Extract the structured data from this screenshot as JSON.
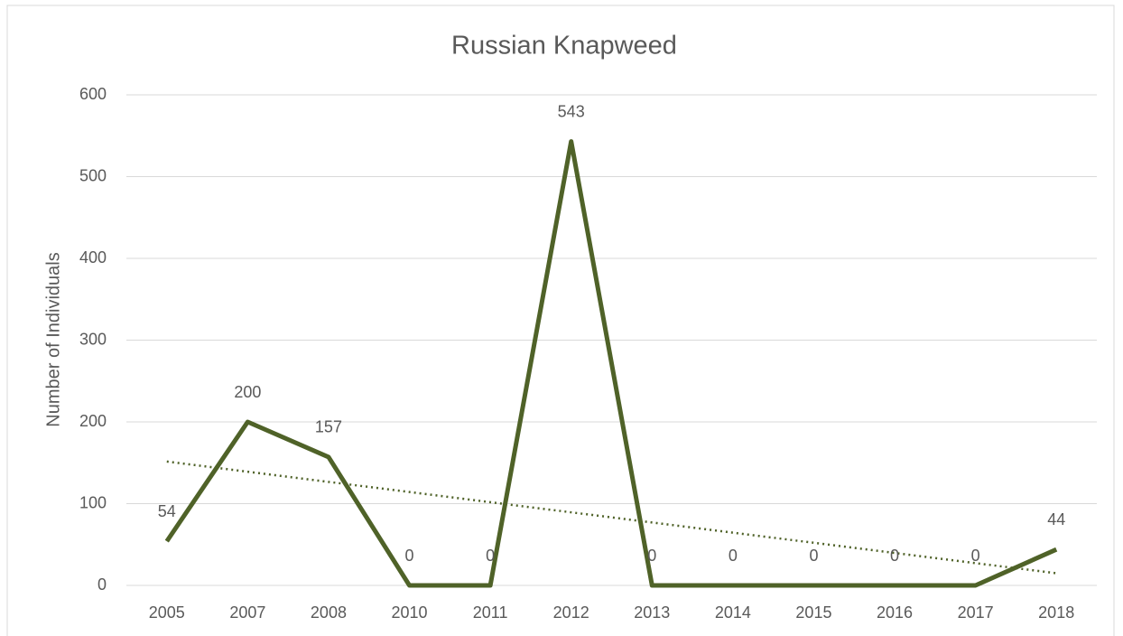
{
  "chart_data": {
    "type": "line",
    "title": "Russian Knapweed",
    "y_label": "Number of Individuals",
    "categories": [
      "2005",
      "2007",
      "2008",
      "2010",
      "2011",
      "2012",
      "2013",
      "2014",
      "2015",
      "2016",
      "2017",
      "2018"
    ],
    "values": [
      54,
      200,
      157,
      0,
      0,
      543,
      0,
      0,
      0,
      0,
      0,
      44
    ],
    "color": "#4f6228",
    "trendline": "linear",
    "ylim": [
      0,
      600
    ],
    "yticks": [
      0,
      100,
      200,
      300,
      400,
      500,
      600
    ],
    "grid": true
  }
}
